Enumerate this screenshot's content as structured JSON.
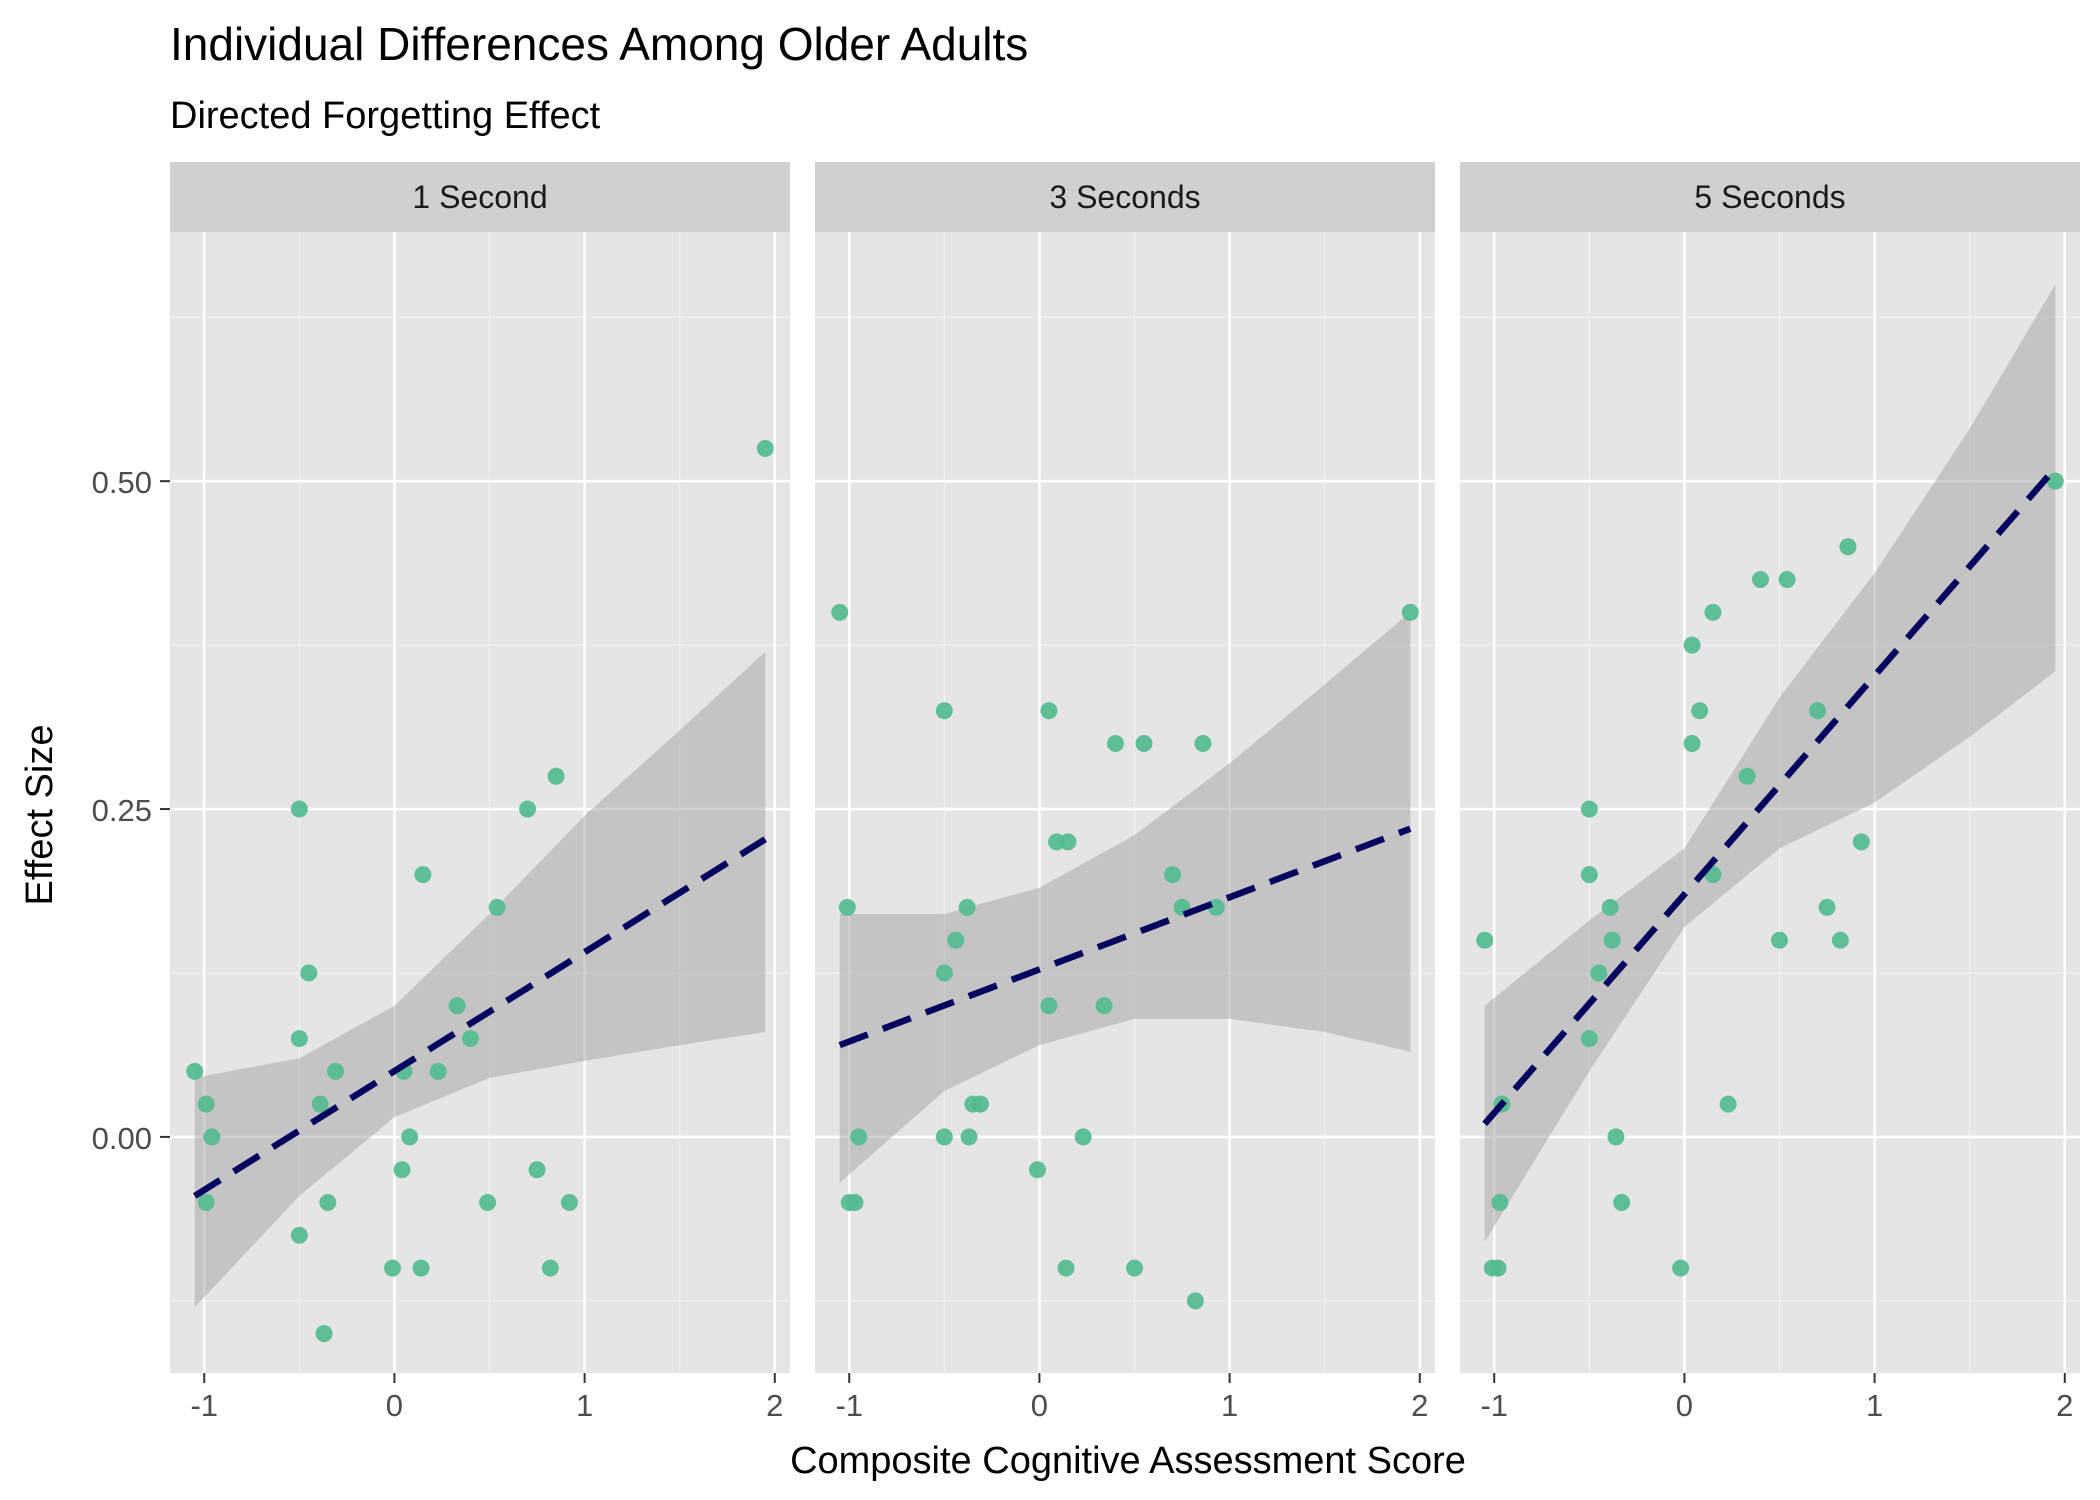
{
  "chart_data": {
    "type": "scatter",
    "title": "Individual Differences Among Older Adults",
    "subtitle": "Directed Forgetting Effect",
    "xlabel": "Composite Cognitive Assessment Score",
    "ylabel": "Effect Size",
    "xlim": [
      -1.18,
      2.08
    ],
    "ylim": [
      -0.18,
      0.69
    ],
    "x_ticks": [
      -1,
      0,
      1,
      2
    ],
    "x_tick_labels": [
      "-1",
      "0",
      "1",
      "2"
    ],
    "y_ticks": [
      0,
      0.25,
      0.5
    ],
    "y_tick_labels": [
      "0.00",
      "0.25",
      "0.50"
    ],
    "grid": true,
    "trend": "linear fit with confidence band",
    "colors": {
      "points": "#52bb8f",
      "fit_line": "#05055f",
      "band": "#a9a9a9",
      "panel_bg": "#e5e5e5",
      "strip_bg": "#d0d0d0"
    },
    "panels": [
      {
        "label": "1 Second",
        "fit": {
          "x_start": -1.05,
          "x_end": 1.95,
          "y_start": -0.045,
          "y_end": 0.227
        },
        "band": {
          "x": [
            -1.05,
            -0.5,
            0,
            0.5,
            1,
            1.5,
            1.95
          ],
          "lower": [
            -0.13,
            -0.045,
            0.015,
            0.045,
            0.058,
            0.07,
            0.08
          ],
          "upper": [
            0.045,
            0.06,
            0.1,
            0.17,
            0.245,
            0.31,
            0.37
          ]
        },
        "points": [
          {
            "x": -1.05,
            "y": 0.05
          },
          {
            "x": -0.99,
            "y": 0.025
          },
          {
            "x": -0.99,
            "y": -0.05
          },
          {
            "x": -0.96,
            "y": 0.0
          },
          {
            "x": -0.5,
            "y": 0.25
          },
          {
            "x": -0.5,
            "y": 0.075
          },
          {
            "x": -0.5,
            "y": -0.075
          },
          {
            "x": -0.45,
            "y": 0.125
          },
          {
            "x": -0.39,
            "y": 0.025
          },
          {
            "x": -0.37,
            "y": -0.15
          },
          {
            "x": -0.35,
            "y": -0.05
          },
          {
            "x": -0.31,
            "y": 0.05
          },
          {
            "x": -0.01,
            "y": -0.1
          },
          {
            "x": 0.04,
            "y": -0.025
          },
          {
            "x": 0.05,
            "y": 0.05
          },
          {
            "x": 0.08,
            "y": 0.0
          },
          {
            "x": 0.14,
            "y": -0.1
          },
          {
            "x": 0.15,
            "y": 0.2
          },
          {
            "x": 0.23,
            "y": 0.05
          },
          {
            "x": 0.33,
            "y": 0.1
          },
          {
            "x": 0.4,
            "y": 0.075
          },
          {
            "x": 0.49,
            "y": -0.05
          },
          {
            "x": 0.54,
            "y": 0.175
          },
          {
            "x": 0.7,
            "y": 0.25
          },
          {
            "x": 0.75,
            "y": -0.025
          },
          {
            "x": 0.82,
            "y": -0.1
          },
          {
            "x": 0.85,
            "y": 0.275
          },
          {
            "x": 0.92,
            "y": -0.05
          },
          {
            "x": 1.95,
            "y": 0.525
          }
        ]
      },
      {
        "label": "3 Seconds",
        "fit": {
          "x_start": -1.05,
          "x_end": 1.95,
          "y_start": 0.07,
          "y_end": 0.235
        },
        "band": {
          "x": [
            -1.05,
            -0.5,
            0,
            0.5,
            1,
            1.5,
            1.95
          ],
          "lower": [
            -0.035,
            0.035,
            0.07,
            0.09,
            0.09,
            0.08,
            0.065
          ],
          "upper": [
            0.17,
            0.17,
            0.19,
            0.23,
            0.285,
            0.345,
            0.4
          ]
        },
        "points": [
          {
            "x": -1.05,
            "y": 0.4
          },
          {
            "x": -1.01,
            "y": 0.175
          },
          {
            "x": -1.0,
            "y": -0.05
          },
          {
            "x": -0.97,
            "y": -0.05
          },
          {
            "x": -0.95,
            "y": 0.0
          },
          {
            "x": -0.5,
            "y": 0.325
          },
          {
            "x": -0.5,
            "y": 0.125
          },
          {
            "x": -0.5,
            "y": 0.0
          },
          {
            "x": -0.44,
            "y": 0.15
          },
          {
            "x": -0.38,
            "y": 0.175
          },
          {
            "x": -0.37,
            "y": 0.0
          },
          {
            "x": -0.35,
            "y": 0.025
          },
          {
            "x": -0.31,
            "y": 0.025
          },
          {
            "x": -0.01,
            "y": -0.025
          },
          {
            "x": 0.05,
            "y": 0.325
          },
          {
            "x": 0.05,
            "y": 0.1
          },
          {
            "x": 0.09,
            "y": 0.225
          },
          {
            "x": 0.15,
            "y": 0.225
          },
          {
            "x": 0.14,
            "y": -0.1
          },
          {
            "x": 0.23,
            "y": 0.0
          },
          {
            "x": 0.34,
            "y": 0.1
          },
          {
            "x": 0.4,
            "y": 0.3
          },
          {
            "x": 0.5,
            "y": -0.1
          },
          {
            "x": 0.55,
            "y": 0.3
          },
          {
            "x": 0.7,
            "y": 0.2
          },
          {
            "x": 0.75,
            "y": 0.175
          },
          {
            "x": 0.82,
            "y": -0.125
          },
          {
            "x": 0.86,
            "y": 0.3
          },
          {
            "x": 0.93,
            "y": 0.175
          },
          {
            "x": 1.95,
            "y": 0.4
          }
        ]
      },
      {
        "label": "5 Seconds",
        "fit": {
          "x_start": -1.05,
          "x_end": 1.95,
          "y_start": 0.01,
          "y_end": 0.51
        },
        "band": {
          "x": [
            -1.05,
            -0.5,
            0,
            0.5,
            1,
            1.5,
            1.95
          ],
          "lower": [
            -0.08,
            0.05,
            0.16,
            0.22,
            0.255,
            0.305,
            0.355
          ],
          "upper": [
            0.1,
            0.165,
            0.22,
            0.335,
            0.43,
            0.54,
            0.65
          ]
        },
        "points": [
          {
            "x": -1.05,
            "y": 0.15
          },
          {
            "x": -1.01,
            "y": -0.1
          },
          {
            "x": -0.98,
            "y": -0.1
          },
          {
            "x": -0.97,
            "y": -0.05
          },
          {
            "x": -0.96,
            "y": 0.025
          },
          {
            "x": -0.5,
            "y": 0.25
          },
          {
            "x": -0.5,
            "y": 0.2
          },
          {
            "x": -0.5,
            "y": 0.075
          },
          {
            "x": -0.45,
            "y": 0.125
          },
          {
            "x": -0.39,
            "y": 0.175
          },
          {
            "x": -0.38,
            "y": 0.15
          },
          {
            "x": -0.36,
            "y": 0.0
          },
          {
            "x": -0.33,
            "y": -0.05
          },
          {
            "x": -0.02,
            "y": -0.1
          },
          {
            "x": 0.04,
            "y": 0.375
          },
          {
            "x": 0.04,
            "y": 0.3
          },
          {
            "x": 0.08,
            "y": 0.325
          },
          {
            "x": 0.15,
            "y": 0.4
          },
          {
            "x": 0.15,
            "y": 0.2
          },
          {
            "x": 0.23,
            "y": 0.025
          },
          {
            "x": 0.33,
            "y": 0.275
          },
          {
            "x": 0.4,
            "y": 0.425
          },
          {
            "x": 0.5,
            "y": 0.15
          },
          {
            "x": 0.54,
            "y": 0.425
          },
          {
            "x": 0.7,
            "y": 0.325
          },
          {
            "x": 0.75,
            "y": 0.175
          },
          {
            "x": 0.82,
            "y": 0.15
          },
          {
            "x": 0.86,
            "y": 0.45
          },
          {
            "x": 0.93,
            "y": 0.225
          },
          {
            "x": 1.95,
            "y": 0.5
          }
        ]
      }
    ]
  }
}
